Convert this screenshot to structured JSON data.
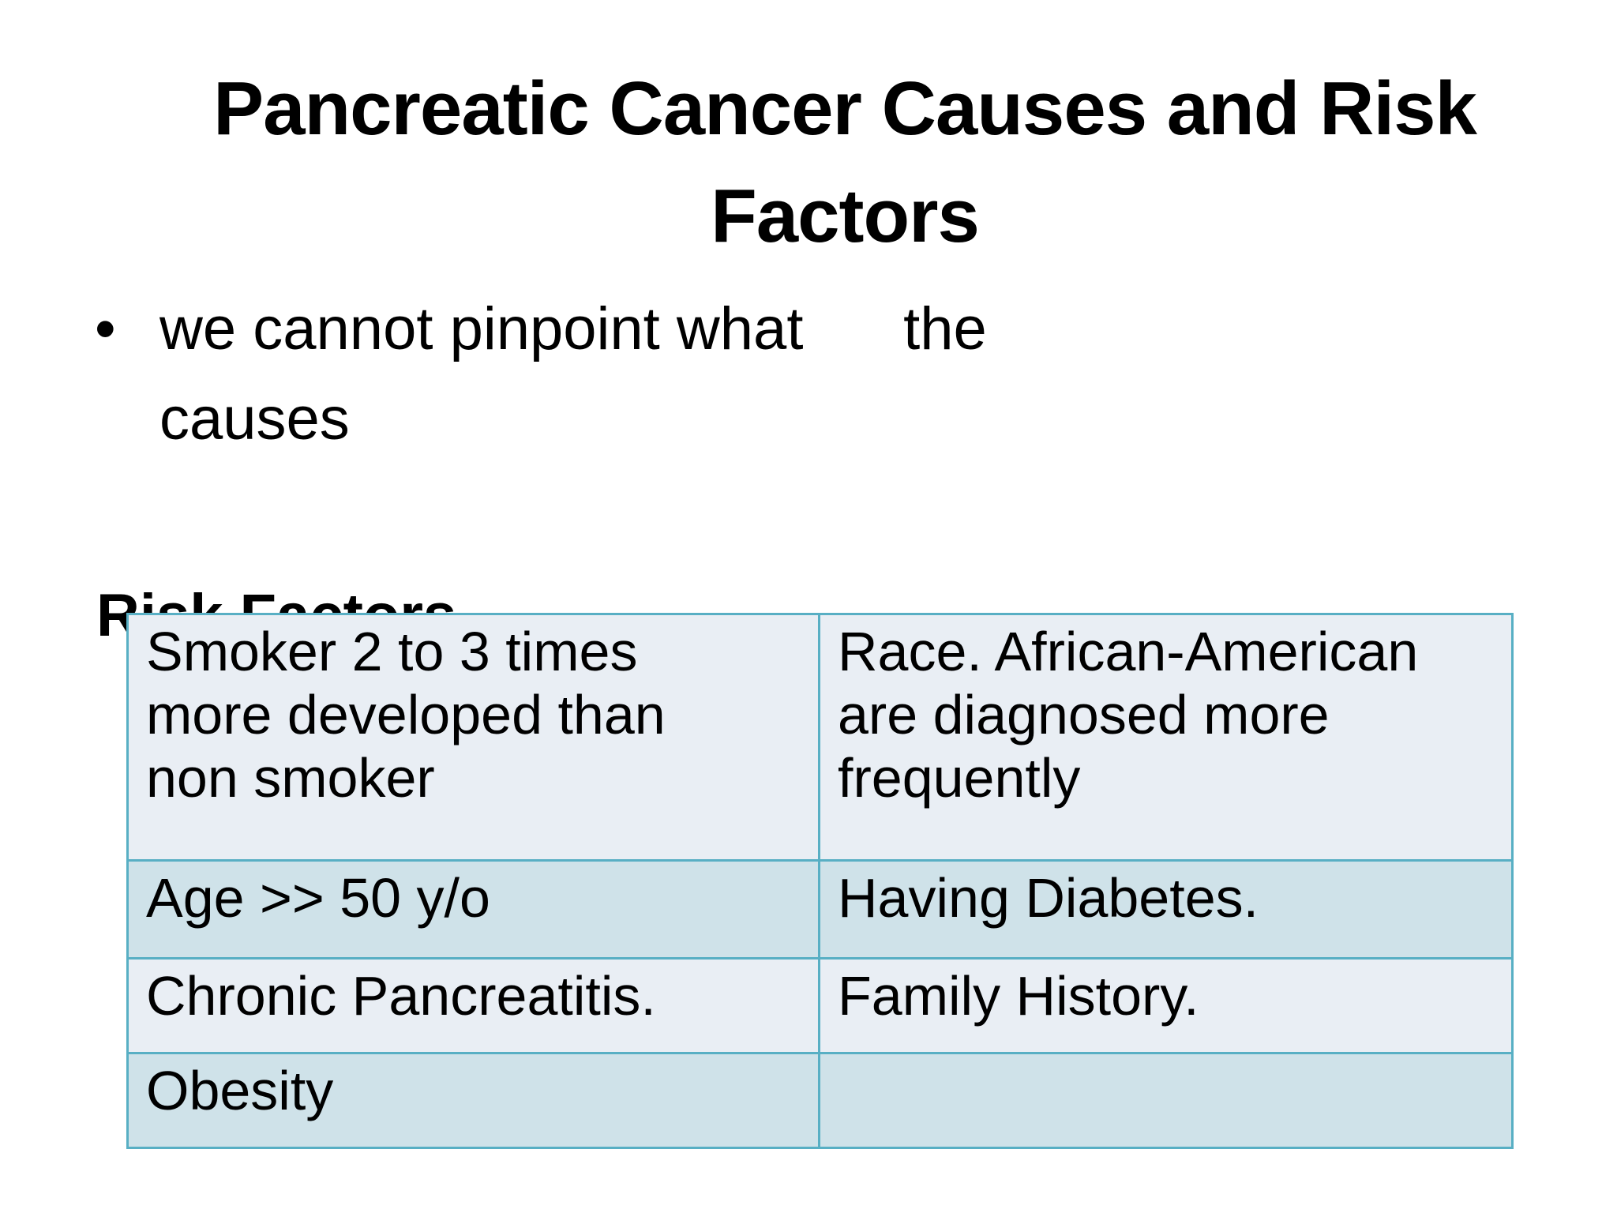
{
  "slide": {
    "title": "Pancreatic Cancer Causes and Risk Factors",
    "bullets": [
      {
        "line1": "we cannot pinpoint what      the",
        "line2": "causes"
      }
    ],
    "risk_heading": "Risk Factors",
    "table": {
      "rows": [
        {
          "left": "Smoker 2 to 3 times\nmore developed than\nnon smoker",
          "right": "Race. African-American\nare diagnosed more\nfrequently"
        },
        {
          "left": "Age   >> 50 y/o",
          "right": "Having Diabetes."
        },
        {
          "left": "Chronic Pancreatitis.",
          "right": "Family History."
        },
        {
          "left": "Obesity",
          "right": ""
        }
      ]
    },
    "colors": {
      "table_border": "#58afc4",
      "row_light": "#e9eef4",
      "row_dark": "#cfe2e9"
    }
  }
}
